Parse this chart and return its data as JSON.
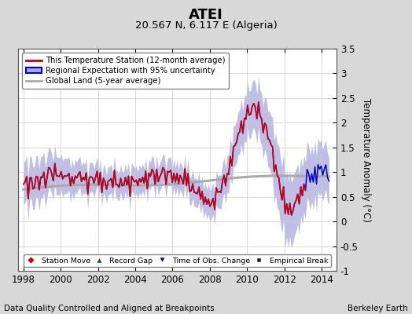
{
  "title": "ATEI",
  "subtitle": "20.567 N, 6.117 E (Algeria)",
  "ylabel": "Temperature Anomaly (°C)",
  "xlabel_note": "Data Quality Controlled and Aligned at Breakpoints",
  "credit": "Berkeley Earth",
  "ylim": [
    -1.0,
    3.5
  ],
  "xlim_start": 1997.7,
  "xlim_end": 2014.8,
  "xticks": [
    1998,
    2000,
    2002,
    2004,
    2006,
    2008,
    2010,
    2012,
    2014
  ],
  "yticks": [
    -1.0,
    -0.5,
    0.0,
    0.5,
    1.0,
    1.5,
    2.0,
    2.5,
    3.0,
    3.5
  ],
  "bg_color": "#d8d8d8",
  "plot_bg_color": "#ffffff",
  "regional_line_color": "#0000cc",
  "regional_fill_color": "#aaaadd",
  "station_line_color": "#cc0000",
  "global_land_color": "#aaaaaa",
  "legend_box_color": "#ffffff",
  "grid_color": "#cccccc",
  "title_fontsize": 13,
  "subtitle_fontsize": 9.5,
  "tick_fontsize": 8.5,
  "label_fontsize": 8.5,
  "note_fontsize": 7.5
}
